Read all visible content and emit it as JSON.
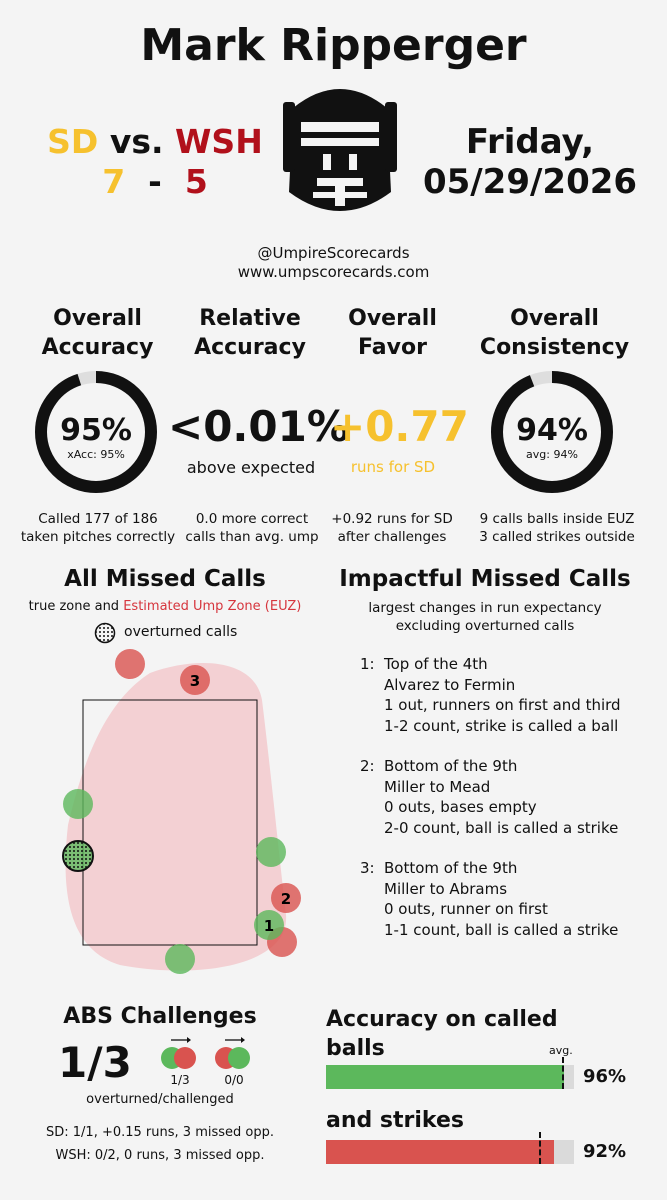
{
  "header": {
    "umpire_name": "Mark Ripperger",
    "away_team": "SD",
    "vs": "vs.",
    "home_team": "WSH",
    "away_score": "7",
    "dash": "-",
    "home_score": "5",
    "date_line1": "Friday,",
    "date_line2": "05/29/2026",
    "handle": "@UmpireScorecards",
    "website": "www.umpscorecards.com"
  },
  "colors": {
    "away": "#f6c12e",
    "home": "#b1101b",
    "ball_marker": "#5cb85c",
    "strike_marker": "#d9534f",
    "euz": "#f2c9cc"
  },
  "metrics": {
    "accuracy": {
      "head1": "Overall",
      "head2": "Accuracy",
      "value": "95%",
      "sub": "xAcc: 95%",
      "fraction": 0.95,
      "note1": "Called 177 of 186",
      "note2": "taken pitches correctly"
    },
    "relative": {
      "head1": "Relative",
      "head2": "Accuracy",
      "value": "<0.01%",
      "sub": "above expected",
      "note1": "0.0 more correct",
      "note2": "calls than avg. ump"
    },
    "favor": {
      "head1": "Overall",
      "head2": "Favor",
      "value": "+0.77",
      "sub": "runs for SD",
      "note1": "+0.92 runs for SD",
      "note2": "after challenges"
    },
    "consistency": {
      "head1": "Overall",
      "head2": "Consistency",
      "value": "94%",
      "sub": "avg: 94%",
      "fraction": 0.94,
      "note1": "9 calls balls inside EUZ",
      "note2": "3 called strikes outside"
    }
  },
  "missed_calls": {
    "title": "All Missed Calls",
    "subtitle_a": "true zone and ",
    "subtitle_b": "Estimated Ump Zone (EUZ)",
    "legend": "overturned calls",
    "labels": [
      "1",
      "2",
      "3"
    ]
  },
  "impactful": {
    "title": "Impactful Missed Calls",
    "sub1": "largest changes in run expectancy",
    "sub2": "excluding overturned calls",
    "items": [
      {
        "num": "1:",
        "l1": "Top of the 4th",
        "l2": "Alvarez to Fermin",
        "l3": "1 out, runners on first and third",
        "l4": "1-2 count, strike is called a ball"
      },
      {
        "num": "2:",
        "l1": "Bottom of the 9th",
        "l2": "Miller to Mead",
        "l3": "0 outs, bases empty",
        "l4": "2-0 count, ball is called a strike"
      },
      {
        "num": "3:",
        "l1": "Bottom of the 9th",
        "l2": "Miller to Abrams",
        "l3": "0 outs, runner on first",
        "l4": "1-1 count, ball is called a strike"
      }
    ]
  },
  "abs": {
    "title": "ABS Challenges",
    "big": "1/3",
    "icon1_label": "1/3",
    "icon2_label": "0/0",
    "caption": "overturned/challenged",
    "line_sd": "SD: 1/1, +0.15 runs, 3 missed opp.",
    "line_wsh": "WSH: 0/2, 0 runs, 3 missed opp."
  },
  "accuracy_bars": {
    "title1": "Accuracy on called",
    "title2": "balls",
    "avg_label": "avg.",
    "balls_value": "96%",
    "balls_fraction": 0.96,
    "balls_avg_fraction": 0.95,
    "title3": "and strikes",
    "strikes_value": "92%",
    "strikes_fraction": 0.92,
    "strikes_avg_fraction": 0.86
  }
}
